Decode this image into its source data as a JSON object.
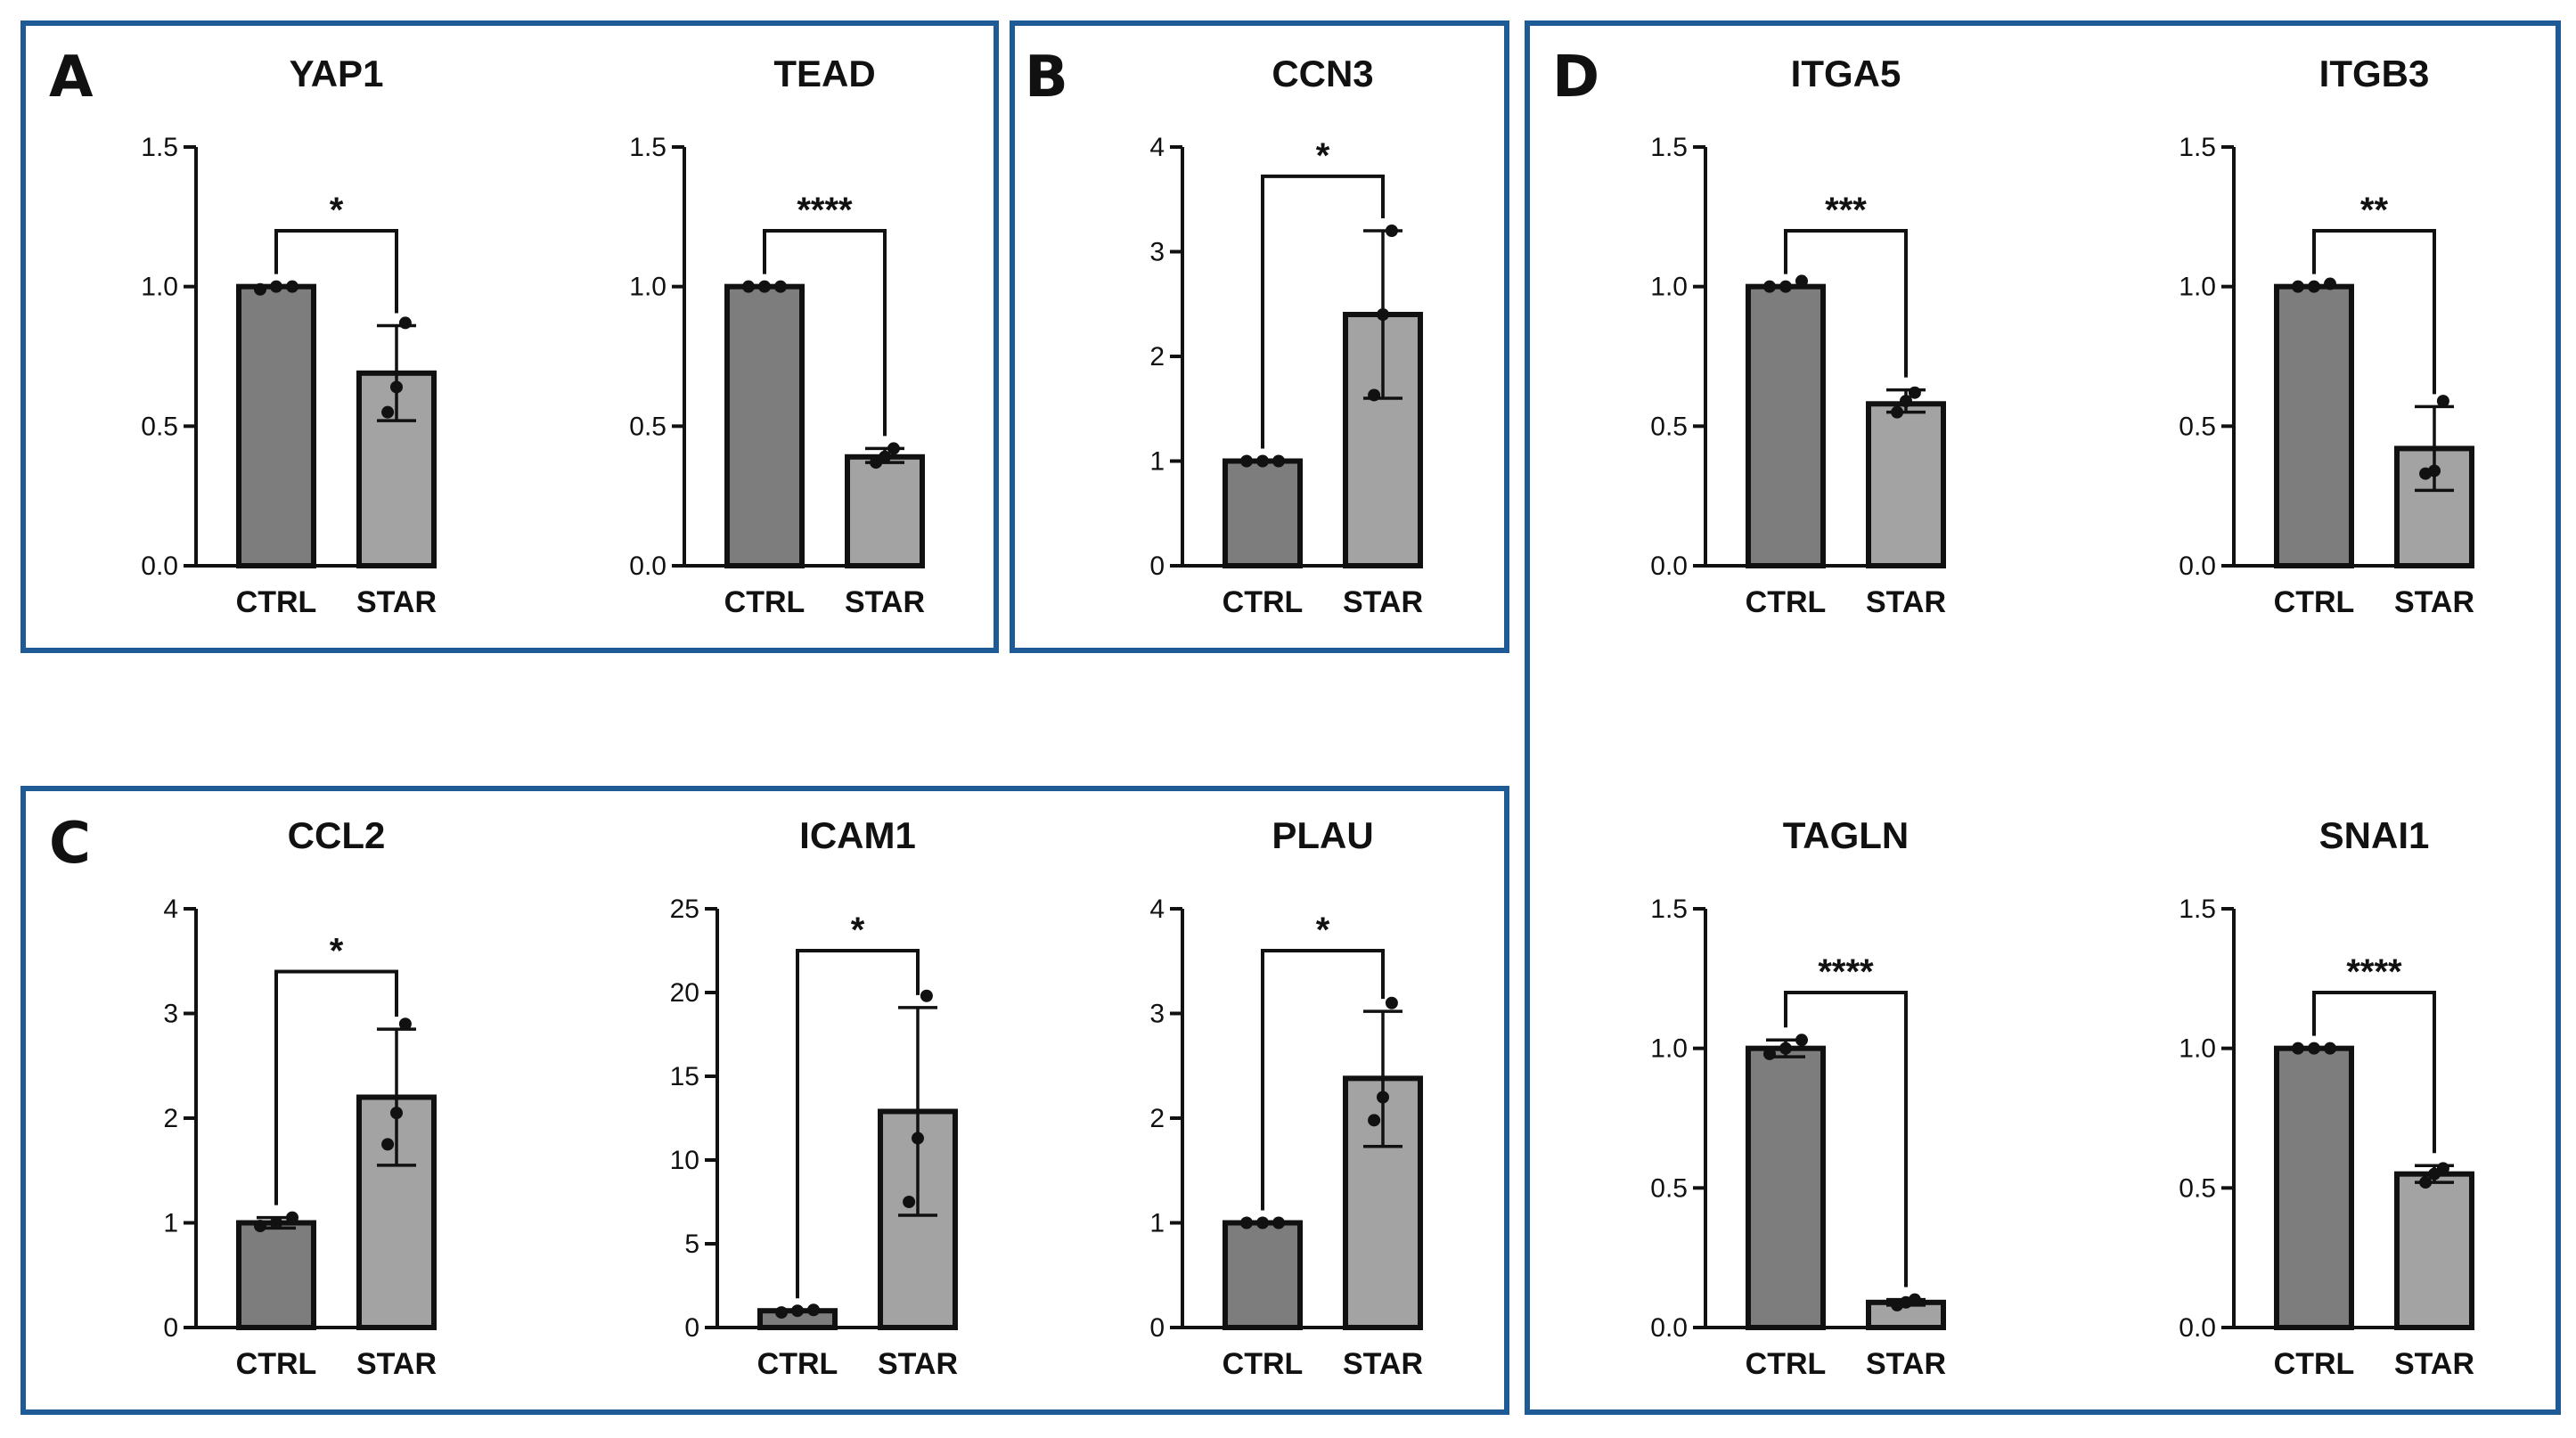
{
  "colors": {
    "panel_border": "#1e5a96",
    "ctrl_bar": "#7d7d7d",
    "star_bar": "#a3a3a3",
    "ink": "#111111"
  },
  "panels": [
    {
      "letter": "A"
    },
    {
      "letter": "B"
    },
    {
      "letter": "C"
    },
    {
      "letter": "D"
    }
  ],
  "chart_data": [
    {
      "panel": "A",
      "type": "bar",
      "title": "YAP1",
      "categories": [
        "CTRL",
        "STAR"
      ],
      "values": [
        1.0,
        0.69
      ],
      "error": [
        [
          1.0,
          1.0
        ],
        [
          0.52,
          0.86
        ]
      ],
      "points": [
        [
          0.99,
          1.0,
          1.0
        ],
        [
          0.55,
          0.64,
          0.87
        ]
      ],
      "yticks": [
        0.0,
        0.5,
        1.0,
        1.5
      ],
      "tick_labels": [
        "0.0",
        "0.5",
        "1.0",
        "1.5"
      ],
      "ylim": [
        0,
        1.5
      ],
      "bracket_y": 1.2,
      "significance": "*"
    },
    {
      "panel": "A",
      "type": "bar",
      "title": "TEAD",
      "categories": [
        "CTRL",
        "STAR"
      ],
      "values": [
        1.0,
        0.39
      ],
      "error": [
        [
          1.0,
          1.0
        ],
        [
          0.37,
          0.42
        ]
      ],
      "points": [
        [
          1.0,
          1.0,
          1.0
        ],
        [
          0.37,
          0.39,
          0.42
        ]
      ],
      "yticks": [
        0.0,
        0.5,
        1.0,
        1.5
      ],
      "tick_labels": [
        "0.0",
        "0.5",
        "1.0",
        "1.5"
      ],
      "ylim": [
        0,
        1.5
      ],
      "bracket_y": 1.2,
      "significance": "****"
    },
    {
      "panel": "B",
      "type": "bar",
      "title": "CCN3",
      "categories": [
        "CTRL",
        "STAR"
      ],
      "values": [
        1.0,
        2.4
      ],
      "error": [
        [
          1.0,
          1.0
        ],
        [
          1.6,
          3.2
        ]
      ],
      "points": [
        [
          1.0,
          1.0,
          1.0
        ],
        [
          1.63,
          2.4,
          3.2
        ]
      ],
      "yticks": [
        0,
        1,
        2,
        3,
        4
      ],
      "tick_labels": [
        "0",
        "1",
        "2",
        "3",
        "4"
      ],
      "ylim": [
        0,
        4
      ],
      "bracket_y": 3.72,
      "significance": "*"
    },
    {
      "panel": "C",
      "type": "bar",
      "title": "CCL2",
      "categories": [
        "CTRL",
        "STAR"
      ],
      "values": [
        1.0,
        2.2
      ],
      "error": [
        [
          0.95,
          1.05
        ],
        [
          1.55,
          2.85
        ]
      ],
      "points": [
        [
          0.97,
          1.0,
          1.05
        ],
        [
          1.75,
          2.05,
          2.9
        ]
      ],
      "yticks": [
        0,
        1,
        2,
        3,
        4
      ],
      "tick_labels": [
        "0",
        "1",
        "2",
        "3",
        "4"
      ],
      "ylim": [
        0,
        4
      ],
      "bracket_y": 3.4,
      "significance": "*"
    },
    {
      "panel": "C",
      "type": "bar",
      "title": "ICAM1",
      "categories": [
        "CTRL",
        "STAR"
      ],
      "values": [
        1.0,
        12.9
      ],
      "error": [
        [
          1.0,
          1.0
        ],
        [
          6.7,
          19.1
        ]
      ],
      "points": [
        [
          0.9,
          1.0,
          1.05
        ],
        [
          7.5,
          11.3,
          19.8
        ]
      ],
      "yticks": [
        0,
        5,
        10,
        15,
        20,
        25
      ],
      "tick_labels": [
        "0",
        "5",
        "10",
        "15",
        "20",
        "25"
      ],
      "ylim": [
        0,
        25
      ],
      "bracket_y": 22.5,
      "significance": "*"
    },
    {
      "panel": "C",
      "type": "bar",
      "title": "PLAU",
      "categories": [
        "CTRL",
        "STAR"
      ],
      "values": [
        1.0,
        2.38
      ],
      "error": [
        [
          1.0,
          1.0
        ],
        [
          1.73,
          3.02
        ]
      ],
      "points": [
        [
          1.0,
          1.0,
          1.0
        ],
        [
          1.98,
          2.2,
          3.1
        ]
      ],
      "yticks": [
        0,
        1,
        2,
        3,
        4
      ],
      "tick_labels": [
        "0",
        "1",
        "2",
        "3",
        "4"
      ],
      "ylim": [
        0,
        4
      ],
      "bracket_y": 3.6,
      "significance": "*"
    },
    {
      "panel": "D",
      "type": "bar",
      "title": "ITGA5",
      "categories": [
        "CTRL",
        "STAR"
      ],
      "values": [
        1.0,
        0.58
      ],
      "error": [
        [
          1.0,
          1.0
        ],
        [
          0.55,
          0.63
        ]
      ],
      "points": [
        [
          1.0,
          1.0,
          1.02
        ],
        [
          0.55,
          0.59,
          0.62
        ]
      ],
      "yticks": [
        0.0,
        0.5,
        1.0,
        1.5
      ],
      "tick_labels": [
        "0.0",
        "0.5",
        "1.0",
        "1.5"
      ],
      "ylim": [
        0,
        1.5
      ],
      "bracket_y": 1.2,
      "significance": "***"
    },
    {
      "panel": "D",
      "type": "bar",
      "title": "ITGB3",
      "categories": [
        "CTRL",
        "STAR"
      ],
      "values": [
        1.0,
        0.42
      ],
      "error": [
        [
          1.0,
          1.0
        ],
        [
          0.27,
          0.57
        ]
      ],
      "points": [
        [
          1.0,
          1.0,
          1.01
        ],
        [
          0.33,
          0.34,
          0.59
        ]
      ],
      "yticks": [
        0.0,
        0.5,
        1.0,
        1.5
      ],
      "tick_labels": [
        "0.0",
        "0.5",
        "1.0",
        "1.5"
      ],
      "ylim": [
        0,
        1.5
      ],
      "bracket_y": 1.2,
      "significance": "**"
    },
    {
      "panel": "D",
      "type": "bar",
      "title": "TAGLN",
      "categories": [
        "CTRL",
        "STAR"
      ],
      "values": [
        1.0,
        0.09
      ],
      "error": [
        [
          0.97,
          1.03
        ],
        [
          0.08,
          0.1
        ]
      ],
      "points": [
        [
          0.98,
          1.0,
          1.03
        ],
        [
          0.08,
          0.09,
          0.1
        ]
      ],
      "yticks": [
        0.0,
        0.5,
        1.0,
        1.5
      ],
      "tick_labels": [
        "0.0",
        "0.5",
        "1.0",
        "1.5"
      ],
      "ylim": [
        0,
        1.5
      ],
      "bracket_y": 1.2,
      "significance": "****"
    },
    {
      "panel": "D",
      "type": "bar",
      "title": "SNAI1",
      "categories": [
        "CTRL",
        "STAR"
      ],
      "values": [
        1.0,
        0.55
      ],
      "error": [
        [
          1.0,
          1.0
        ],
        [
          0.52,
          0.58
        ]
      ],
      "points": [
        [
          1.0,
          1.0,
          1.0
        ],
        [
          0.52,
          0.55,
          0.57
        ]
      ],
      "yticks": [
        0.0,
        0.5,
        1.0,
        1.5
      ],
      "tick_labels": [
        "0.0",
        "0.5",
        "1.0",
        "1.5"
      ],
      "ylim": [
        0,
        1.5
      ],
      "bracket_y": 1.2,
      "significance": "****"
    }
  ]
}
